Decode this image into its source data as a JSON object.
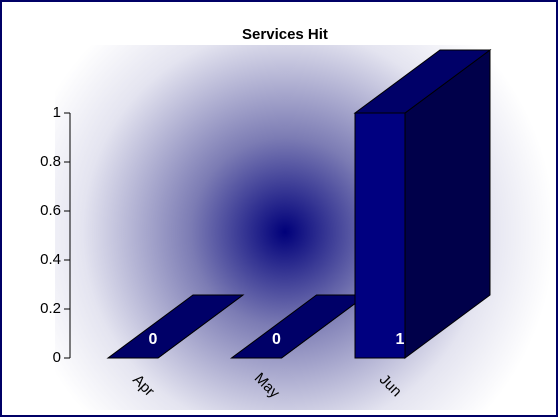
{
  "chart_data": {
    "type": "bar3d",
    "title": "Services Hit",
    "categories": [
      "Apr",
      "May",
      "Jun"
    ],
    "values": [
      0,
      0,
      1
    ],
    "color": "#000080",
    "ylim": [
      0,
      1
    ],
    "yticks": [
      0,
      0.2,
      0.4,
      0.6,
      0.8,
      1
    ]
  }
}
